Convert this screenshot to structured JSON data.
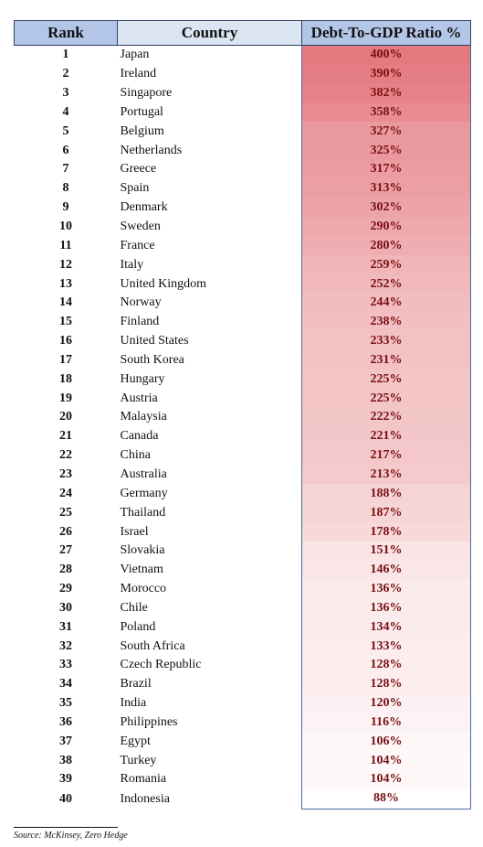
{
  "table": {
    "headers": {
      "rank": "Rank",
      "country": "Country",
      "ratio": "Debt-To-GDP Ratio %"
    },
    "header_colors": {
      "rank": "#b4c6e7",
      "country": "#dbe5f1",
      "ratio": "#b4c6e7"
    },
    "gradient_colors": {
      "high": "#e47a80",
      "low": "#ffffff"
    },
    "rows": [
      {
        "rank": "1",
        "country": "Japan",
        "ratio": "400%",
        "value": 400
      },
      {
        "rank": "2",
        "country": "Ireland",
        "ratio": "390%",
        "value": 390
      },
      {
        "rank": "3",
        "country": "Singapore",
        "ratio": "382%",
        "value": 382
      },
      {
        "rank": "4",
        "country": "Portugal",
        "ratio": "358%",
        "value": 358
      },
      {
        "rank": "5",
        "country": "Belgium",
        "ratio": "327%",
        "value": 327
      },
      {
        "rank": "6",
        "country": "Netherlands",
        "ratio": "325%",
        "value": 325
      },
      {
        "rank": "7",
        "country": "Greece",
        "ratio": "317%",
        "value": 317
      },
      {
        "rank": "8",
        "country": "Spain",
        "ratio": "313%",
        "value": 313
      },
      {
        "rank": "9",
        "country": "Denmark",
        "ratio": "302%",
        "value": 302
      },
      {
        "rank": "10",
        "country": "Sweden",
        "ratio": "290%",
        "value": 290
      },
      {
        "rank": "11",
        "country": "France",
        "ratio": "280%",
        "value": 280
      },
      {
        "rank": "12",
        "country": "Italy",
        "ratio": "259%",
        "value": 259
      },
      {
        "rank": "13",
        "country": "United Kingdom",
        "ratio": "252%",
        "value": 252
      },
      {
        "rank": "14",
        "country": "Norway",
        "ratio": "244%",
        "value": 244
      },
      {
        "rank": "15",
        "country": "Finland",
        "ratio": "238%",
        "value": 238
      },
      {
        "rank": "16",
        "country": "United States",
        "ratio": "233%",
        "value": 233
      },
      {
        "rank": "17",
        "country": "South Korea",
        "ratio": "231%",
        "value": 231
      },
      {
        "rank": "18",
        "country": "Hungary",
        "ratio": "225%",
        "value": 225
      },
      {
        "rank": "19",
        "country": "Austria",
        "ratio": "225%",
        "value": 225
      },
      {
        "rank": "20",
        "country": "Malaysia",
        "ratio": "222%",
        "value": 222
      },
      {
        "rank": "21",
        "country": "Canada",
        "ratio": "221%",
        "value": 221
      },
      {
        "rank": "22",
        "country": "China",
        "ratio": "217%",
        "value": 217
      },
      {
        "rank": "23",
        "country": "Australia",
        "ratio": "213%",
        "value": 213
      },
      {
        "rank": "24",
        "country": "Germany",
        "ratio": "188%",
        "value": 188
      },
      {
        "rank": "25",
        "country": "Thailand",
        "ratio": "187%",
        "value": 187
      },
      {
        "rank": "26",
        "country": "Israel",
        "ratio": "178%",
        "value": 178
      },
      {
        "rank": "27",
        "country": "Slovakia",
        "ratio": "151%",
        "value": 151
      },
      {
        "rank": "28",
        "country": "Vietnam",
        "ratio": "146%",
        "value": 146
      },
      {
        "rank": "29",
        "country": "Morocco",
        "ratio": "136%",
        "value": 136
      },
      {
        "rank": "30",
        "country": "Chile",
        "ratio": "136%",
        "value": 136
      },
      {
        "rank": "31",
        "country": "Poland",
        "ratio": "134%",
        "value": 134
      },
      {
        "rank": "32",
        "country": "South Africa",
        "ratio": "133%",
        "value": 133
      },
      {
        "rank": "33",
        "country": "Czech Republic",
        "ratio": "128%",
        "value": 128
      },
      {
        "rank": "34",
        "country": "Brazil",
        "ratio": "128%",
        "value": 128
      },
      {
        "rank": "35",
        "country": "India",
        "ratio": "120%",
        "value": 120
      },
      {
        "rank": "36",
        "country": "Philippines",
        "ratio": "116%",
        "value": 116
      },
      {
        "rank": "37",
        "country": "Egypt",
        "ratio": "106%",
        "value": 106
      },
      {
        "rank": "38",
        "country": "Turkey",
        "ratio": "104%",
        "value": 104
      },
      {
        "rank": "39",
        "country": "Romania",
        "ratio": "104%",
        "value": 104
      },
      {
        "rank": "40",
        "country": "Indonesia",
        "ratio": "88%",
        "value": 88
      }
    ]
  },
  "source": "Source: McKinsey, Zero Hedge"
}
